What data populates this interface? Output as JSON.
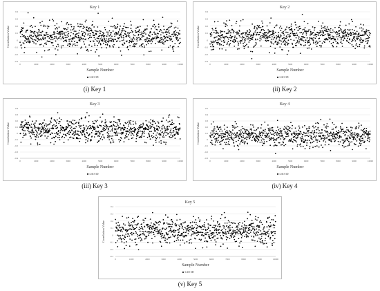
{
  "chart_data": [
    {
      "type": "scatter",
      "title": "Key 1",
      "xlabel": "Sample Number",
      "ylabel": "Correlation Value",
      "legend": "LAO-3D",
      "legend_position": "bottom",
      "xlim": [
        0,
        10000
      ],
      "ylim": [
        -0.3,
        0.4
      ],
      "xticks": [
        "0",
        "1000",
        "2000",
        "3000",
        "4000",
        "5000",
        "6000",
        "7000",
        "8000",
        "9000",
        "10000"
      ],
      "yticks": [
        "-0.3",
        "-0.2",
        "-0.1",
        "0",
        "0.1",
        "0.2",
        "0.3",
        "0.4"
      ],
      "caption": "(i) Key 1",
      "seed": 11,
      "series": [
        {
          "name": "LAO-3D",
          "color": "#000000",
          "n": 800,
          "center": 0.06,
          "spread": 0.17
        }
      ]
    },
    {
      "type": "scatter",
      "title": "Key 2",
      "xlabel": "Sample Number",
      "ylabel": "Correlation Value",
      "legend": "LAO-3D",
      "legend_position": "bottom",
      "xlim": [
        0,
        10000
      ],
      "ylim": [
        -0.3,
        0.4
      ],
      "xticks": [
        "0",
        "1000",
        "2000",
        "3000",
        "4000",
        "5000",
        "6000",
        "7000",
        "8000",
        "9000",
        "10000"
      ],
      "yticks": [
        "-0.3",
        "-0.2",
        "-0.1",
        "0",
        "0.1",
        "0.2",
        "0.3",
        "0.4"
      ],
      "caption": "(ii) Key 2",
      "seed": 23,
      "series": [
        {
          "name": "LAO-3D",
          "color": "#000000",
          "n": 800,
          "center": 0.06,
          "spread": 0.16
        }
      ]
    },
    {
      "type": "scatter",
      "title": "Key 3",
      "xlabel": "Sample Number",
      "ylabel": "Correlation Value",
      "legend": "LAO-3D",
      "legend_position": "bottom",
      "xlim": [
        0,
        10000
      ],
      "ylim": [
        -0.4,
        0.4
      ],
      "xticks": [
        "0",
        "1000",
        "2000",
        "3000",
        "4000",
        "5000",
        "6000",
        "7000",
        "8000",
        "9000",
        "10000"
      ],
      "yticks": [
        "-0.4",
        "-0.3",
        "-0.2",
        "-0.1",
        "0",
        "0.1",
        "0.2",
        "0.3",
        "0.4"
      ],
      "caption": "(iii) Key 3",
      "seed": 37,
      "series": [
        {
          "name": "LAO-3D",
          "color": "#000000",
          "n": 800,
          "center": 0.05,
          "spread": 0.17
        }
      ]
    },
    {
      "type": "scatter",
      "title": "Key 4",
      "xlabel": "Sample Number",
      "ylabel": "Correlation Value",
      "legend": "LAO-3D",
      "legend_position": "bottom",
      "xlim": [
        0,
        10000
      ],
      "ylim": [
        -0.3,
        0.5
      ],
      "xticks": [
        "0",
        "1000",
        "2000",
        "3000",
        "4000",
        "5000",
        "6000",
        "7000",
        "8000",
        "9000",
        "10000"
      ],
      "yticks": [
        "-0.3",
        "-0.2",
        "-0.1",
        "0",
        "0.1",
        "0.2",
        "0.3",
        "0.4",
        "0.5"
      ],
      "caption": "(iv) Key 4",
      "seed": 41,
      "series": [
        {
          "name": "LAO-3D",
          "color": "#000000",
          "n": 800,
          "center": 0.06,
          "spread": 0.16
        }
      ]
    },
    {
      "type": "scatter",
      "title": "Key 5",
      "xlabel": "Sample Number",
      "ylabel": "Correlation Value",
      "legend": "LAO-3D",
      "legend_position": "bottom",
      "xlim": [
        0,
        10000
      ],
      "ylim": [
        -0.3,
        0.4
      ],
      "xticks": [
        "0",
        "1000",
        "2000",
        "3000",
        "4000",
        "5000",
        "6000",
        "7000",
        "8000",
        "9000",
        "10000"
      ],
      "yticks": [
        "-0.3",
        "-0.2",
        "-0.1",
        "0",
        "0.1",
        "0.2",
        "0.3",
        "0.4"
      ],
      "caption": "(v) Key 5",
      "seed": 53,
      "series": [
        {
          "name": "LAO-3D",
          "color": "#000000",
          "n": 800,
          "center": 0.06,
          "spread": 0.17
        }
      ]
    }
  ]
}
